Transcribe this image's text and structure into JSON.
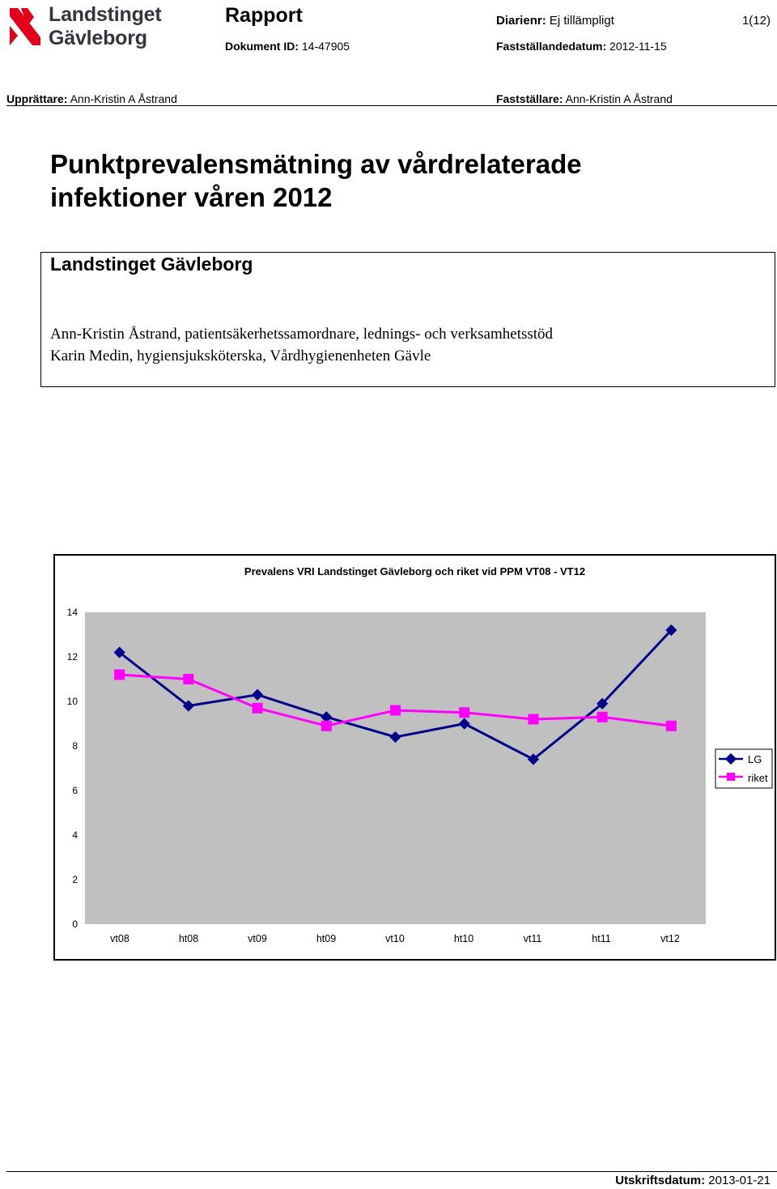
{
  "header": {
    "logo_line1": "Landstinget",
    "logo_line2": "Gävleborg",
    "doc_type": "Rapport",
    "diarienr_label": "Diarienr:",
    "diarienr_value": "Ej tillämpligt",
    "page": "1(12)",
    "dokument_id_label": "Dokument ID:",
    "dokument_id_value": "14-47905",
    "faststallandedatum_label": "Fastställandedatum:",
    "faststallandedatum_value": "2012-11-15",
    "upprattare_label": "Upprättare:",
    "upprattare_value": "Ann-Kristin A Åstrand",
    "faststallare_label": "Fastställare:",
    "faststallare_value": "Ann-Kristin A Åstrand"
  },
  "title_line1": "Punktprevalensmätning av vårdrelaterade",
  "title_line2": "infektioner våren 2012",
  "org_name": "Landstinget Gävleborg",
  "authors": [
    "Ann-Kristin Åstrand, patientsäkerhetssamordnare, lednings- och verksamhetsstöd",
    "Karin Medin, hygiensjuksköterska, Vårdhygienenheten Gävle"
  ],
  "chart_data": {
    "type": "line",
    "title": "Prevalens VRI Landstinget Gävleborg och riket vid PPM VT08 - VT12",
    "categories": [
      "vt08",
      "ht08",
      "vt09",
      "ht09",
      "vt10",
      "ht10",
      "vt11",
      "ht11",
      "vt12"
    ],
    "series": [
      {
        "name": "LG",
        "values": [
          12.2,
          9.8,
          10.3,
          9.3,
          8.4,
          9.0,
          7.4,
          9.9,
          13.2
        ],
        "color": "#00008b",
        "marker": "diamond"
      },
      {
        "name": "riket",
        "values": [
          11.2,
          11.0,
          9.7,
          8.9,
          9.6,
          9.5,
          9.2,
          9.3,
          8.9
        ],
        "color": "#ff00ff",
        "marker": "square"
      }
    ],
    "ylim": [
      0,
      14
    ],
    "yticks": [
      "14",
      "12",
      "10",
      "8",
      "6",
      "4",
      "2",
      "0"
    ],
    "legend": "right"
  },
  "footer": {
    "label": "Utskriftsdatum:",
    "value": "2013-01-21"
  }
}
